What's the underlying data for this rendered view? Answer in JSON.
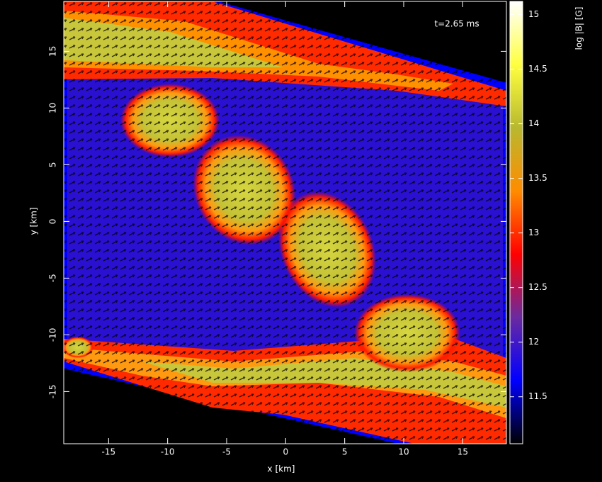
{
  "chart_data": {
    "type": "heatmap",
    "annotation": "t=2.65 ms",
    "xlabel": "x [km]",
    "ylabel": "y [km]",
    "colorbar_label": "log |B| [G]",
    "xlim": [
      -18.8,
      18.7
    ],
    "xticks": [
      -15,
      -10,
      -5,
      0,
      5,
      10,
      15
    ],
    "ylim": [
      -19.6,
      19.4
    ],
    "yticks": [
      -15,
      -10,
      -5,
      0,
      5,
      10,
      15
    ],
    "clim": [
      11.07,
      15.12
    ],
    "cticks": [
      11.5,
      12,
      12.5,
      13,
      13.5,
      14,
      14.5,
      15
    ],
    "colormap": [
      "#000000",
      "#0000ff",
      "#6a2aa0",
      "#ff0000",
      "#ff8c00",
      "#b8b830",
      "#ffff40",
      "#ffffff"
    ]
  }
}
